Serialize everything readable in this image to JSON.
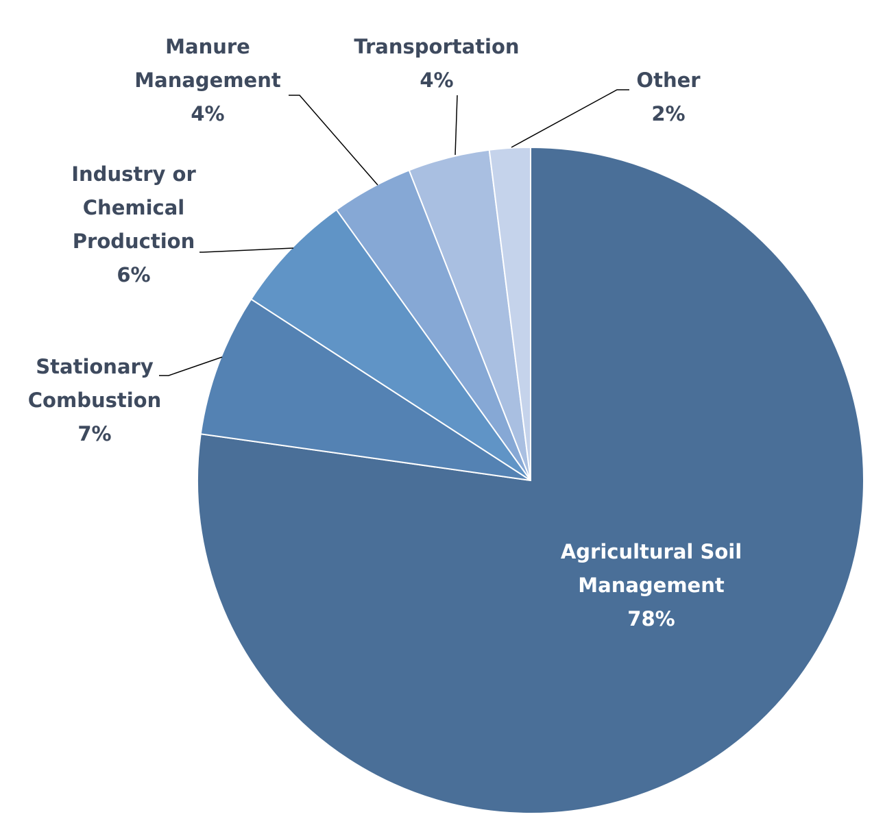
{
  "chart_data": {
    "type": "pie",
    "title": "",
    "slices": [
      {
        "name": "Agricultural Soil Management",
        "label_lines": [
          "Agricultural Soil",
          "Management",
          "78%"
        ],
        "value": 78,
        "color": "#4a6f98",
        "label_color": "#ffffff"
      },
      {
        "name": "Stationary Combustion",
        "label_lines": [
          "Stationary",
          "Combustion",
          "7%"
        ],
        "value": 7,
        "color": "#5482b3",
        "label_color": "#3e4a5e"
      },
      {
        "name": "Industry or Chemical Production",
        "label_lines": [
          "Industry or",
          "Chemical",
          "Production",
          "6%"
        ],
        "value": 6,
        "color": "#6094c6",
        "label_color": "#3e4a5e"
      },
      {
        "name": "Manure Management",
        "label_lines": [
          "Manure",
          "Management",
          "4%"
        ],
        "value": 4,
        "color": "#86a8d5",
        "label_color": "#3e4a5e"
      },
      {
        "name": "Transportation",
        "label_lines": [
          "Transportation",
          "4%"
        ],
        "value": 4,
        "color": "#a9bfe1",
        "label_color": "#3e4a5e"
      },
      {
        "name": "Other",
        "label_lines": [
          "Other",
          "2%"
        ],
        "value": 2,
        "color": "#c5d3eb",
        "label_color": "#3e4a5e"
      }
    ],
    "start_angle_deg": 0,
    "direction": "clockwise"
  }
}
